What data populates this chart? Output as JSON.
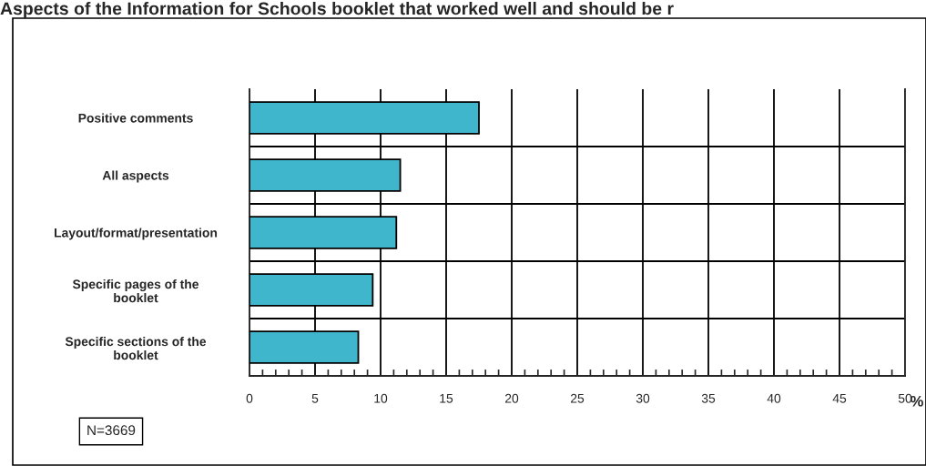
{
  "chart_data": {
    "type": "bar",
    "orientation": "horizontal",
    "title": "Aspects of the Information for Schools booklet that worked well and should be r",
    "categories": [
      "Positive comments",
      "All aspects",
      "Layout/format/presentation",
      "Specific pages of the\nbooklet",
      "Specific sections of the\nbooklet"
    ],
    "values": [
      17.5,
      11.5,
      11.2,
      9.4,
      8.3
    ],
    "color": "#40b6cc",
    "xlim": [
      0,
      50
    ],
    "xticks": [
      0,
      5,
      10,
      15,
      20,
      25,
      30,
      35,
      40,
      45,
      50
    ],
    "xlabel": "%",
    "annotations": [
      "N=3669"
    ],
    "grid": true
  }
}
